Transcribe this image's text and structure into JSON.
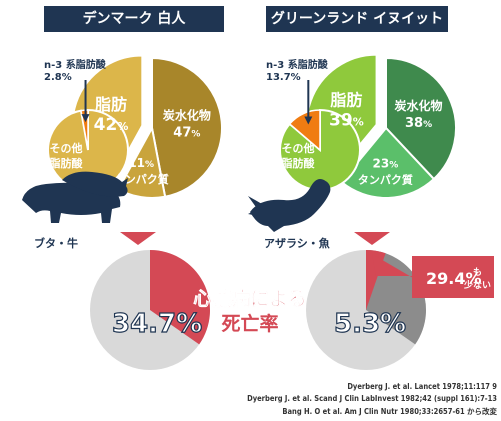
{
  "chart_data": [
    {
      "type": "pie",
      "title": "デンマーク 白人",
      "caption": "ブタ・牛",
      "omega3_label": "n-3 系脂肪酸",
      "omega3_value": "2.8%",
      "slices": [
        {
          "name": "炭水化物",
          "value": 47,
          "display": "47",
          "color": "#a8862a"
        },
        {
          "name": "タンパク質",
          "value": 11,
          "display": "11",
          "color": "#c9a43c"
        },
        {
          "name": "脂肪",
          "value": 42,
          "display": "42",
          "color": "#dcb64a"
        }
      ],
      "fat_breakdown": [
        {
          "name": "n-3 系脂肪酸",
          "value": 2.8,
          "color": "#f07c12"
        },
        {
          "name": "その他脂肪酸",
          "value": 39.2,
          "color": "#dcb64a"
        }
      ],
      "colors": {
        "carb": "#a8862a",
        "protein": "#c9a43c",
        "fat": "#dcb64a",
        "other": "#dcb64a",
        "omega3": "#f07c12"
      }
    },
    {
      "type": "pie",
      "title": "グリーンランド イヌイット",
      "caption": "アザラシ・魚",
      "omega3_label": "n-3 系脂肪酸",
      "omega3_value": "13.7%",
      "slices": [
        {
          "name": "炭水化物",
          "value": 38,
          "display": "38",
          "color": "#3f8a4d"
        },
        {
          "name": "タンパク質",
          "value": 23,
          "display": "23",
          "color": "#5bbf6a"
        },
        {
          "name": "脂肪",
          "value": 39,
          "display": "39",
          "color": "#8fc93c"
        }
      ],
      "fat_breakdown": [
        {
          "name": "n-3 系脂肪酸",
          "value": 13.7,
          "color": "#f07c12"
        },
        {
          "name": "その他脂肪酸",
          "value": 25.3,
          "color": "#8fc93c"
        }
      ],
      "colors": {
        "carb": "#3f8a4d",
        "protein": "#5bbf6a",
        "fat": "#8fc93c",
        "other": "#8fc93c",
        "omega3": "#f07c12"
      }
    },
    {
      "type": "pie",
      "title": "心臓病による死亡率",
      "series": [
        {
          "value": 34.7,
          "display": "34.7%",
          "color": "#d44955",
          "rest_color": "#d9d9d9"
        },
        {
          "value": 5.3,
          "display": "5.3%",
          "color": "#d44955",
          "rest_color": "#d9d9d9",
          "ratio_display": "29.4%",
          "ratio_note": "も少ない",
          "compare_color": "#8c8c8c"
        }
      ]
    }
  ],
  "labels": {
    "fat": "脂肪",
    "carb": "炭水化物",
    "protein": "タンパク質",
    "other_top": "その他",
    "other_bottom": "脂肪酸",
    "percent": "%",
    "mortality_line1": "心臓病による",
    "mortality_line2": "死亡率",
    "ratio_note_line1": "も",
    "ratio_note_line2": "少ない"
  },
  "references": [
    "Dyerberg J. et al. Lancet 1978;11:117 9",
    "Dyerberg J. et al. Scand J Clin LabInvest 1982;42 (suppl 161):7-13",
    "Bang H. O et al. Am J Clin Nutr 1980;33:2657-61 から改変"
  ],
  "colors": {
    "header_bg": "#1f3552",
    "accent_red": "#d44955",
    "text_dark": "#1f3552",
    "arrow_red": "#d44955"
  }
}
